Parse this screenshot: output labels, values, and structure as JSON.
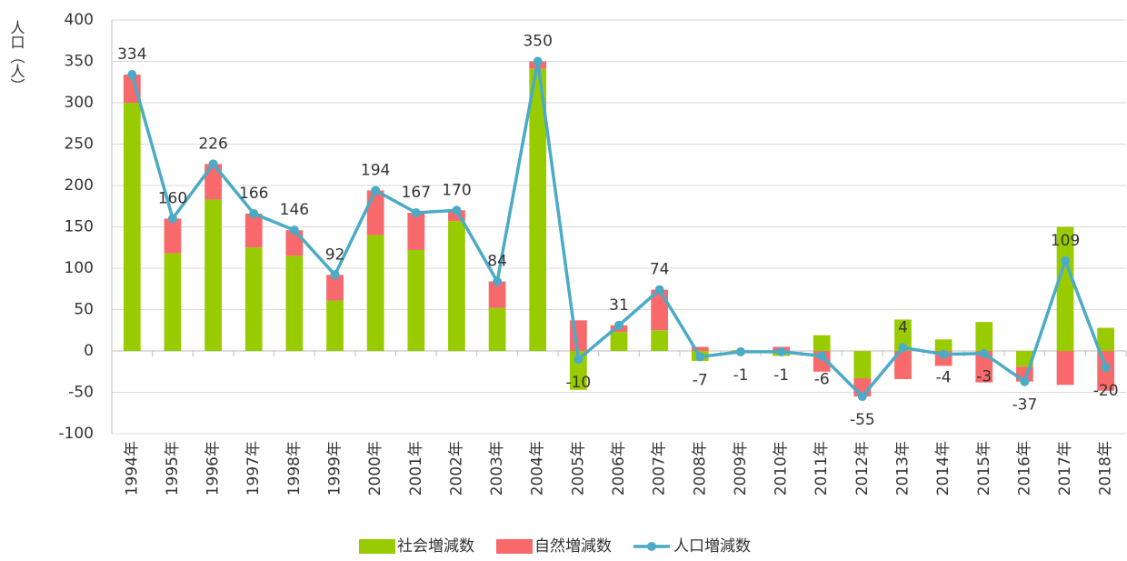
{
  "chart_data": {
    "type": "bar-line",
    "y_label": "人口（人）",
    "categories": [
      "1994年",
      "1995年",
      "1996年",
      "1997年",
      "1998年",
      "1999年",
      "2000年",
      "2001年",
      "2002年",
      "2003年",
      "2004年",
      "2005年",
      "2006年",
      "2007年",
      "2008年",
      "2009年",
      "2010年",
      "2011年",
      "2012年",
      "2013年",
      "2014年",
      "2015年",
      "2016年",
      "2017年",
      "2018年"
    ],
    "series": [
      {
        "name": "社会増減数",
        "type": "bar",
        "color": "#99cc00",
        "values": [
          300,
          118,
          183,
          125,
          115,
          61,
          140,
          122,
          157,
          52,
          341,
          -47,
          23,
          25,
          -12,
          1,
          -6,
          19,
          -33,
          38,
          14,
          35,
          -19,
          150,
          28
        ]
      },
      {
        "name": "自然増減数",
        "type": "bar",
        "color": "#f8696b",
        "values": [
          34,
          42,
          43,
          41,
          31,
          31,
          54,
          45,
          13,
          32,
          9,
          37,
          8,
          49,
          5,
          -2,
          5,
          -25,
          -22,
          -34,
          -18,
          -38,
          -18,
          -41,
          -48
        ]
      },
      {
        "name": "人口増減数",
        "type": "line",
        "color": "#4babc6",
        "values": [
          334,
          160,
          226,
          166,
          146,
          92,
          194,
          167,
          170,
          84,
          350,
          -10,
          31,
          74,
          -7,
          -1,
          -1,
          -6,
          -55,
          4,
          -4,
          -3,
          -37,
          109,
          -20
        ]
      }
    ],
    "ylim": [
      -100,
      400
    ],
    "yticks": [
      -100,
      -50,
      0,
      50,
      100,
      150,
      200,
      250,
      300,
      350,
      400
    ],
    "grid": true
  }
}
